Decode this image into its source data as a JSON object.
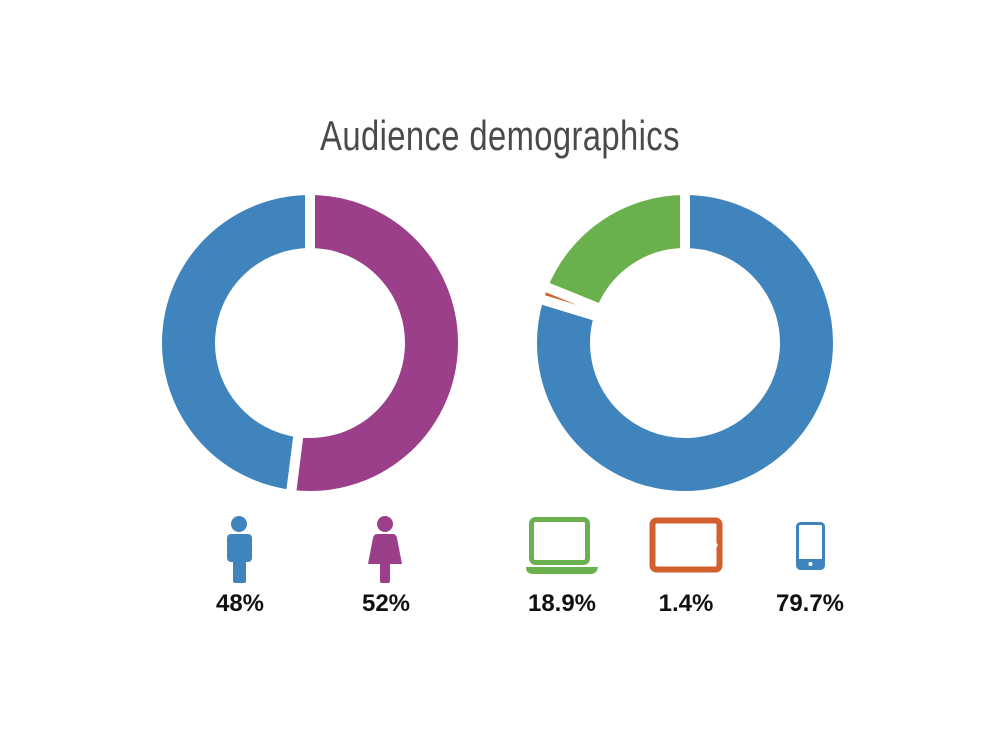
{
  "chart_data": [
    {
      "type": "pie",
      "donut": true,
      "title": "Audience demographics",
      "categories": [
        "male",
        "female"
      ],
      "values": [
        48,
        52
      ],
      "labels": [
        "48%",
        "52%"
      ],
      "colors": [
        "#3f84bc",
        "#9b3f8a"
      ],
      "icons": [
        "male-person-icon",
        "female-person-icon"
      ]
    },
    {
      "type": "pie",
      "donut": true,
      "categories": [
        "mobile",
        "tablet",
        "laptop"
      ],
      "values": [
        79.7,
        1.4,
        18.9
      ],
      "labels": [
        "79.7%",
        "1.4%",
        "18.9%"
      ],
      "colors": [
        "#3f84bc",
        "#d2602e",
        "#6ab04c"
      ],
      "icons": [
        "smartphone-icon",
        "tablet-icon",
        "laptop-icon"
      ]
    }
  ]
}
